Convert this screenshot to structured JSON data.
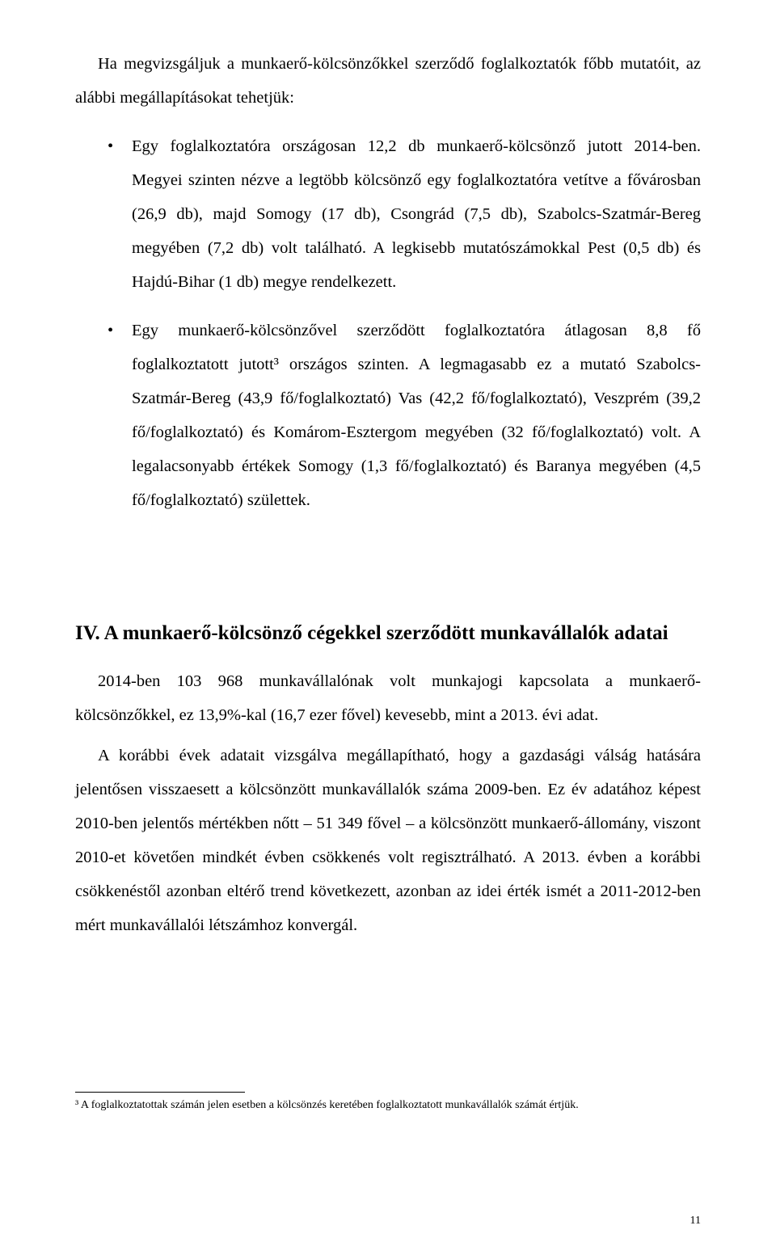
{
  "intro": "Ha megvizsgáljuk a munkaerő-kölcsönzőkkel szerződő foglalkoztatók főbb mutatóit, az alábbi megállapításokat tehetjük:",
  "bullets": [
    "Egy foglalkoztatóra országosan 12,2 db munkaerő-kölcsönző jutott 2014-ben. Megyei szinten nézve a legtöbb kölcsönző egy foglalkoztatóra vetítve a fővárosban (26,9 db), majd Somogy (17 db), Csongrád (7,5 db), Szabolcs-Szatmár-Bereg megyében (7,2 db) volt található. A legkisebb mutatószámokkal Pest (0,5 db) és Hajdú-Bihar (1 db) megye rendelkezett.",
    "Egy munkaerő-kölcsönzővel szerződött foglalkoztatóra átlagosan 8,8 fő foglalkoztatott jutott³ országos szinten. A legmagasabb ez a mutató Szabolcs-Szatmár-Bereg (43,9 fő/foglalkoztató) Vas (42,2 fő/foglalkoztató), Veszprém (39,2 fő/foglalkoztató) és Komárom-Esztergom megyében (32 fő/foglalkoztató) volt. A legalacsonyabb értékek Somogy (1,3 fő/foglalkoztató) és Baranya megyében (4,5 fő/foglalkoztató) születtek."
  ],
  "heading": "IV. A munkaerő-kölcsönző cégekkel szerződött munkavállalók adatai",
  "body1": "2014-ben 103 968 munkavállalónak volt munkajogi kapcsolata a munkaerő-kölcsönzőkkel, ez 13,9%-kal (16,7 ezer fővel) kevesebb, mint a 2013. évi adat.",
  "body2": "A korábbi évek adatait vizsgálva megállapítható, hogy a gazdasági válság hatására jelentősen visszaesett a kölcsönzött munkavállalók száma 2009-ben. Ez év adatához képest 2010-ben jelentős mértékben nőtt – 51 349 fővel – a kölcsönzött munkaerő-állomány, viszont 2010-et követően mindkét évben csökkenés volt regisztrálható. A 2013. évben a korábbi csökkenéstől azonban eltérő trend következett, azonban az idei érték ismét a 2011-2012-ben mért munkavállalói létszámhoz konvergál.",
  "footnote": "³ A foglalkoztatottak számán jelen esetben a kölcsönzés keretében foglalkoztatott munkavállalók számát értjük.",
  "pageNumber": "11"
}
